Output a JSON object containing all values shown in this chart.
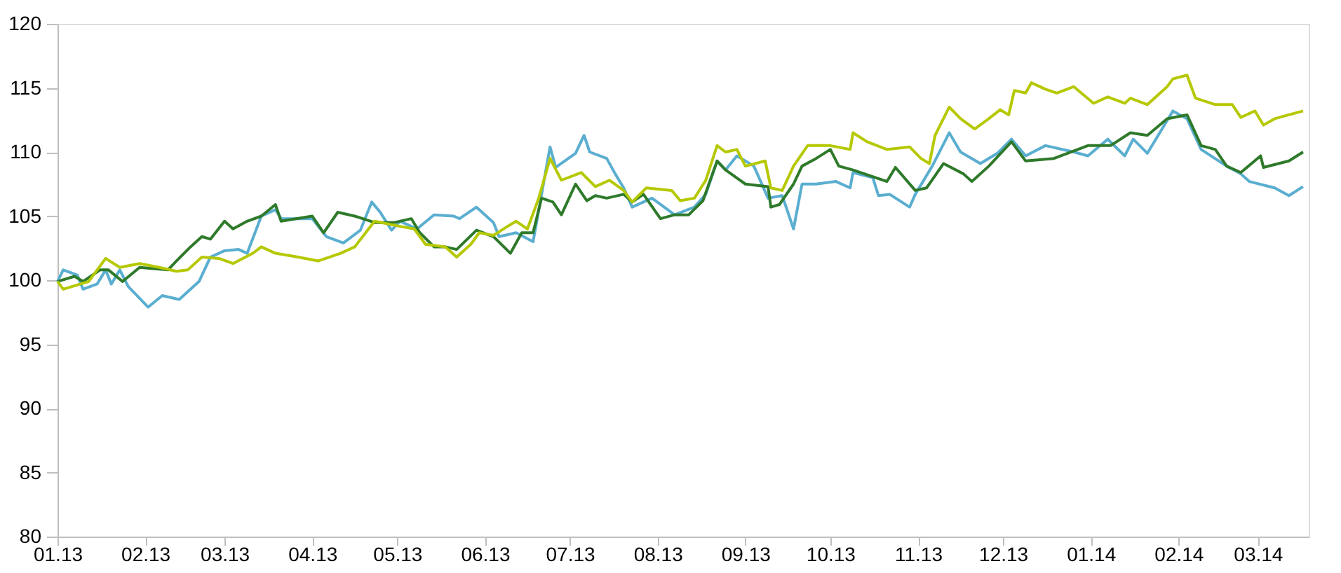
{
  "chart_data": {
    "type": "line",
    "xlim": [
      "2013-01-01",
      "2014-03-19"
    ],
    "ylim": [
      80,
      120
    ],
    "yticks": [
      80,
      85,
      90,
      95,
      100,
      105,
      110,
      115,
      120
    ],
    "xticks": [
      {
        "value": "2013-01-01",
        "label": "01.13"
      },
      {
        "value": "2013-02-01",
        "label": "02.13"
      },
      {
        "value": "2013-03-01",
        "label": "03.13"
      },
      {
        "value": "2013-04-01",
        "label": "04.13"
      },
      {
        "value": "2013-05-01",
        "label": "05.13"
      },
      {
        "value": "2013-06-01",
        "label": "06.13"
      },
      {
        "value": "2013-07-01",
        "label": "07.13"
      },
      {
        "value": "2013-08-01",
        "label": "08.13"
      },
      {
        "value": "2013-09-01",
        "label": "09.13"
      },
      {
        "value": "2013-10-01",
        "label": "10.13"
      },
      {
        "value": "2013-11-01",
        "label": "11.13"
      },
      {
        "value": "2013-12-01",
        "label": "12.13"
      },
      {
        "value": "2014-01-01",
        "label": "01.14"
      },
      {
        "value": "2014-02-01",
        "label": "02.14"
      },
      {
        "value": "2014-03-01",
        "label": "03.14"
      }
    ],
    "series": [
      {
        "color": "#5aaed0",
        "x": [
          "2013-01-01",
          "2013-01-03",
          "2013-01-08",
          "2013-01-10",
          "2013-01-15",
          "2013-01-18",
          "2013-01-20",
          "2013-01-23",
          "2013-01-26",
          "2013-02-02",
          "2013-02-07",
          "2013-02-13",
          "2013-02-20",
          "2013-02-24",
          "2013-03-01",
          "2013-03-06",
          "2013-03-09",
          "2013-03-14",
          "2013-03-19",
          "2013-03-21",
          "2013-04-01",
          "2013-04-06",
          "2013-04-12",
          "2013-04-18",
          "2013-04-22",
          "2013-04-25",
          "2013-04-29",
          "2013-05-02",
          "2013-05-08",
          "2013-05-14",
          "2013-05-21",
          "2013-05-23",
          "2013-05-29",
          "2013-06-04",
          "2013-06-06",
          "2013-06-12",
          "2013-06-18",
          "2013-06-24",
          "2013-06-26",
          "2013-07-03",
          "2013-07-06",
          "2013-07-08",
          "2013-07-14",
          "2013-07-17",
          "2013-07-20",
          "2013-07-23",
          "2013-07-30",
          "2013-08-07",
          "2013-08-14",
          "2013-08-18",
          "2013-08-22",
          "2013-08-25",
          "2013-08-29",
          "2013-09-04",
          "2013-09-09",
          "2013-09-14",
          "2013-09-18",
          "2013-09-21",
          "2013-09-26",
          "2013-10-03",
          "2013-10-08",
          "2013-10-09",
          "2013-10-16",
          "2013-10-18",
          "2013-10-22",
          "2013-10-29",
          "2013-10-31",
          "2013-11-06",
          "2013-11-12",
          "2013-11-16",
          "2013-11-23",
          "2013-11-29",
          "2013-12-04",
          "2013-12-09",
          "2013-12-16",
          "2013-12-26",
          "2013-12-31",
          "2014-01-07",
          "2014-01-13",
          "2014-01-16",
          "2014-01-21",
          "2014-01-30",
          "2014-02-04",
          "2014-02-09",
          "2014-02-18",
          "2014-02-23",
          "2014-02-26",
          "2014-03-07",
          "2014-03-12",
          "2014-03-17"
        ],
        "values": [
          99.9,
          100.8,
          100.4,
          99.3,
          99.7,
          100.8,
          99.7,
          100.8,
          99.5,
          97.9,
          98.8,
          98.5,
          99.9,
          101.8,
          102.3,
          102.4,
          102.1,
          105.0,
          105.5,
          104.8,
          104.8,
          103.4,
          102.9,
          103.9,
          106.1,
          105.3,
          103.9,
          104.6,
          104.0,
          105.1,
          105.0,
          104.8,
          105.7,
          104.5,
          103.4,
          103.7,
          103.0,
          110.4,
          108.8,
          109.9,
          111.3,
          110.0,
          109.5,
          108.3,
          107.2,
          105.7,
          106.4,
          105.1,
          105.7,
          106.7,
          109.3,
          108.6,
          109.7,
          108.9,
          106.4,
          106.6,
          104.0,
          107.5,
          107.5,
          107.7,
          107.2,
          108.4,
          108.0,
          106.6,
          106.7,
          105.7,
          106.7,
          108.9,
          111.5,
          110.0,
          109.1,
          109.9,
          111.0,
          109.7,
          110.5,
          110.0,
          109.7,
          111.0,
          109.7,
          111.0,
          109.9,
          113.2,
          112.6,
          110.2,
          108.9,
          108.3,
          107.7,
          107.2,
          106.6,
          107.3
        ]
      },
      {
        "color": "#2e7a2a",
        "x": [
          "2013-01-01",
          "2013-01-07",
          "2013-01-10",
          "2013-01-16",
          "2013-01-19",
          "2013-01-24",
          "2013-01-30",
          "2013-02-09",
          "2013-02-12",
          "2013-02-17",
          "2013-02-21",
          "2013-02-24",
          "2013-03-01",
          "2013-03-04",
          "2013-03-09",
          "2013-03-14",
          "2013-03-19",
          "2013-03-21",
          "2013-04-01",
          "2013-04-05",
          "2013-04-10",
          "2013-04-16",
          "2013-04-23",
          "2013-04-30",
          "2013-05-06",
          "2013-05-09",
          "2013-05-14",
          "2013-05-18",
          "2013-05-22",
          "2013-05-29",
          "2013-06-04",
          "2013-06-10",
          "2013-06-14",
          "2013-06-18",
          "2013-06-21",
          "2013-06-25",
          "2013-06-28",
          "2013-07-03",
          "2013-07-07",
          "2013-07-10",
          "2013-07-14",
          "2013-07-20",
          "2013-07-23",
          "2013-07-27",
          "2013-08-02",
          "2013-08-07",
          "2013-08-12",
          "2013-08-17",
          "2013-08-22",
          "2013-08-25",
          "2013-09-01",
          "2013-09-09",
          "2013-09-10",
          "2013-09-13",
          "2013-09-18",
          "2013-09-21",
          "2013-09-26",
          "2013-10-01",
          "2013-10-04",
          "2013-10-09",
          "2013-10-21",
          "2013-10-24",
          "2013-10-31",
          "2013-11-04",
          "2013-11-10",
          "2013-11-17",
          "2013-11-20",
          "2013-11-26",
          "2013-12-04",
          "2013-12-09",
          "2013-12-19",
          "2013-12-31",
          "2014-01-08",
          "2014-01-15",
          "2014-01-21",
          "2014-01-28",
          "2014-02-04",
          "2014-02-09",
          "2014-02-14",
          "2014-02-18",
          "2014-02-23",
          "2014-03-02",
          "2014-03-03",
          "2014-03-12",
          "2014-03-17"
        ],
        "values": [
          99.9,
          100.3,
          99.9,
          100.8,
          100.8,
          99.9,
          101.0,
          100.8,
          101.5,
          102.6,
          103.4,
          103.2,
          104.6,
          104.0,
          104.6,
          105.0,
          105.9,
          104.6,
          105.0,
          103.7,
          105.3,
          105.0,
          104.5,
          104.5,
          104.8,
          103.7,
          102.6,
          102.6,
          102.4,
          103.9,
          103.4,
          102.1,
          103.7,
          103.7,
          106.4,
          106.1,
          105.1,
          107.5,
          106.2,
          106.6,
          106.4,
          106.7,
          106.1,
          106.7,
          104.8,
          105.1,
          105.1,
          106.2,
          109.3,
          108.6,
          107.5,
          107.3,
          105.7,
          105.9,
          107.5,
          108.9,
          109.5,
          110.2,
          108.9,
          108.6,
          107.7,
          108.8,
          107.0,
          107.2,
          109.1,
          108.3,
          107.7,
          108.9,
          110.8,
          109.3,
          109.5,
          110.5,
          110.5,
          111.5,
          111.3,
          112.6,
          112.9,
          110.5,
          110.2,
          108.9,
          108.4,
          109.7,
          108.8,
          109.3,
          110.0
        ]
      },
      {
        "color": "#b5c800",
        "x": [
          "2013-01-01",
          "2013-01-03",
          "2013-01-12",
          "2013-01-18",
          "2013-01-23",
          "2013-01-30",
          "2013-02-06",
          "2013-02-12",
          "2013-02-16",
          "2013-02-21",
          "2013-02-27",
          "2013-03-04",
          "2013-03-11",
          "2013-03-14",
          "2013-03-19",
          "2013-03-27",
          "2013-04-03",
          "2013-04-11",
          "2013-04-16",
          "2013-04-23",
          "2013-05-02",
          "2013-05-07",
          "2013-05-11",
          "2013-05-18",
          "2013-05-22",
          "2013-05-27",
          "2013-05-30",
          "2013-06-04",
          "2013-06-09",
          "2013-06-12",
          "2013-06-16",
          "2013-06-20",
          "2013-06-24",
          "2013-06-28",
          "2013-07-05",
          "2013-07-10",
          "2013-07-15",
          "2013-07-20",
          "2013-07-23",
          "2013-07-28",
          "2013-08-06",
          "2013-08-09",
          "2013-08-14",
          "2013-08-18",
          "2013-08-22",
          "2013-08-25",
          "2013-08-29",
          "2013-09-01",
          "2013-09-08",
          "2013-09-10",
          "2013-09-14",
          "2013-09-18",
          "2013-09-23",
          "2013-10-01",
          "2013-10-08",
          "2013-10-09",
          "2013-10-14",
          "2013-10-21",
          "2013-10-29",
          "2013-11-02",
          "2013-11-05",
          "2013-11-07",
          "2013-11-12",
          "2013-11-16",
          "2013-11-21",
          "2013-11-26",
          "2013-11-30",
          "2013-12-03",
          "2013-12-05",
          "2013-12-09",
          "2013-12-11",
          "2013-12-16",
          "2013-12-20",
          "2013-12-26",
          "2014-01-02",
          "2014-01-07",
          "2014-01-13",
          "2014-01-15",
          "2014-01-21",
          "2014-01-28",
          "2014-01-30",
          "2014-02-04",
          "2014-02-07",
          "2014-02-14",
          "2014-02-20",
          "2014-02-23",
          "2014-02-28",
          "2014-03-03",
          "2014-03-07",
          "2014-03-12",
          "2014-03-17"
        ],
        "values": [
          99.9,
          99.3,
          99.9,
          101.7,
          101.0,
          101.3,
          101.0,
          100.7,
          100.8,
          101.8,
          101.7,
          101.3,
          102.1,
          102.6,
          102.1,
          101.8,
          101.5,
          102.1,
          102.6,
          104.6,
          104.2,
          104.0,
          102.8,
          102.6,
          101.8,
          102.8,
          103.7,
          103.5,
          104.2,
          104.6,
          104.0,
          106.4,
          109.5,
          107.8,
          108.4,
          107.3,
          107.8,
          107.0,
          106.1,
          107.2,
          107.0,
          106.2,
          106.4,
          107.8,
          110.5,
          110.0,
          110.2,
          108.9,
          109.3,
          107.2,
          107.0,
          108.9,
          110.5,
          110.5,
          110.2,
          111.5,
          110.8,
          110.2,
          110.4,
          109.5,
          109.1,
          111.3,
          113.5,
          112.6,
          111.8,
          112.6,
          113.3,
          112.9,
          114.8,
          114.6,
          115.4,
          114.9,
          114.6,
          115.1,
          113.8,
          114.3,
          113.8,
          114.2,
          113.7,
          115.1,
          115.7,
          116.0,
          114.2,
          113.7,
          113.7,
          112.7,
          113.2,
          112.1,
          112.6,
          112.9,
          113.2
        ]
      }
    ]
  }
}
